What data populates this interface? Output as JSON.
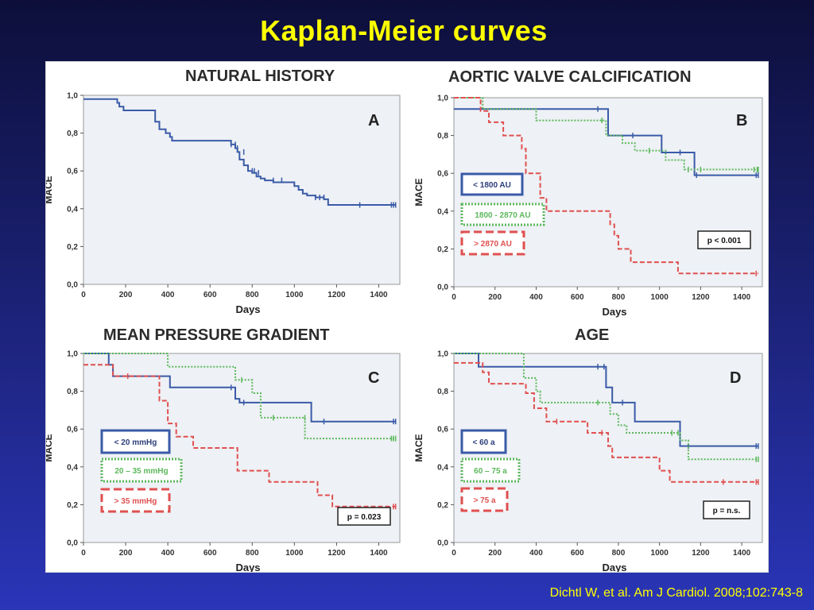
{
  "slide": {
    "title": "Kaplan-Meier curves",
    "citation": "Dichtl W, et al. Am J Cardiol. 2008;102:743-8"
  },
  "colors": {
    "background_top": "#0d0f3a",
    "background_bottom": "#2a35b8",
    "title": "#ffff00",
    "plot_bg": "#eef1f5",
    "blue_series": "#3a5ba8",
    "green_series": "#5cb85c",
    "red_series": "#e05050"
  },
  "chart_data": [
    {
      "id": "A",
      "type": "line",
      "step": true,
      "title": "NATURAL HISTORY",
      "panel_letter": "A",
      "xlabel": "Days",
      "ylabel": "MACE",
      "xlim": [
        0,
        1500
      ],
      "ylim": [
        0,
        1.0
      ],
      "xticks": [
        "0",
        "200",
        "400",
        "600",
        "800",
        "1000",
        "1200",
        "1400"
      ],
      "yticks": [
        "0,0",
        "0,2",
        "0,4",
        "0,6",
        "0,8",
        "1,0"
      ],
      "series": [
        {
          "color": "#3a5ba8",
          "style": "solid",
          "x": [
            0,
            140,
            160,
            170,
            190,
            320,
            340,
            360,
            390,
            410,
            420,
            560,
            700,
            720,
            730,
            740,
            760,
            780,
            800,
            820,
            840,
            860,
            900,
            1000,
            1020,
            1040,
            1060,
            1100,
            1140,
            1160,
            1480
          ],
          "y": [
            0.98,
            0.98,
            0.96,
            0.94,
            0.92,
            0.92,
            0.86,
            0.82,
            0.8,
            0.78,
            0.76,
            0.76,
            0.74,
            0.72,
            0.7,
            0.66,
            0.63,
            0.6,
            0.59,
            0.57,
            0.56,
            0.55,
            0.54,
            0.52,
            0.5,
            0.48,
            0.47,
            0.46,
            0.45,
            0.42,
            0.42
          ],
          "censored": [
            [
              700,
              0.74
            ],
            [
              720,
              0.74
            ],
            [
              730,
              0.72
            ],
            [
              760,
              0.7
            ],
            [
              800,
              0.6
            ],
            [
              810,
              0.6
            ],
            [
              830,
              0.59
            ],
            [
              900,
              0.55
            ],
            [
              940,
              0.55
            ],
            [
              1100,
              0.46
            ],
            [
              1120,
              0.46
            ],
            [
              1140,
              0.46
            ],
            [
              1310,
              0.42
            ],
            [
              1460,
              0.42
            ],
            [
              1470,
              0.42
            ],
            [
              1480,
              0.42
            ]
          ]
        }
      ]
    },
    {
      "id": "B",
      "type": "line",
      "step": true,
      "title": "AORTIC VALVE CALCIFICATION",
      "panel_letter": "B",
      "xlabel": "Days",
      "ylabel": "MACE",
      "xlim": [
        0,
        1500
      ],
      "ylim": [
        0,
        1.0
      ],
      "xticks": [
        "0",
        "200",
        "400",
        "600",
        "800",
        "1000",
        "1200",
        "1400"
      ],
      "yticks": [
        "0,0",
        "0,2",
        "0,4",
        "0,6",
        "0,8",
        "1,0"
      ],
      "annotation": "p < 0.001",
      "series": [
        {
          "name": "< 1800 AU",
          "color": "#3a5ba8",
          "style": "solid",
          "x": [
            0,
            730,
            750,
            1010,
            1170,
            1480
          ],
          "y": [
            0.94,
            0.94,
            0.8,
            0.71,
            0.59,
            0.59
          ],
          "censored": [
            [
              700,
              0.94
            ],
            [
              870,
              0.8
            ],
            [
              1100,
              0.71
            ],
            [
              1180,
              0.59
            ],
            [
              1470,
              0.59
            ],
            [
              1480,
              0.59
            ]
          ]
        },
        {
          "name": "1800 - 2870 AU",
          "color": "#5cb85c",
          "style": "dotted",
          "x": [
            0,
            140,
            400,
            740,
            820,
            880,
            1030,
            1120,
            1480
          ],
          "y": [
            1.0,
            0.94,
            0.88,
            0.8,
            0.76,
            0.72,
            0.67,
            0.62,
            0.62
          ],
          "censored": [
            [
              720,
              0.88
            ],
            [
              950,
              0.72
            ],
            [
              1140,
              0.62
            ],
            [
              1200,
              0.62
            ],
            [
              1460,
              0.62
            ],
            [
              1475,
              0.62
            ],
            [
              1480,
              0.62
            ]
          ]
        },
        {
          "name": "> 2870 AU",
          "color": "#e05050",
          "style": "dashed",
          "x": [
            0,
            130,
            170,
            240,
            330,
            350,
            420,
            450,
            540,
            760,
            780,
            800,
            860,
            910,
            1090,
            1480
          ],
          "y": [
            1.0,
            0.93,
            0.87,
            0.8,
            0.73,
            0.6,
            0.47,
            0.4,
            0.4,
            0.33,
            0.27,
            0.2,
            0.13,
            0.13,
            0.07,
            0.07
          ],
          "censored": [
            [
              1470,
              0.07
            ]
          ]
        }
      ]
    },
    {
      "id": "C",
      "type": "line",
      "step": true,
      "title": "MEAN PRESSURE GRADIENT",
      "panel_letter": "C",
      "xlabel": "Days",
      "ylabel": "MACE",
      "xlim": [
        0,
        1500
      ],
      "ylim": [
        0,
        1.0
      ],
      "xticks": [
        "0",
        "200",
        "400",
        "600",
        "800",
        "1000",
        "1200",
        "1400"
      ],
      "yticks": [
        "0,0",
        "0,2",
        "0,4",
        "0,6",
        "0,8",
        "1,0"
      ],
      "annotation": "p = 0.023",
      "series": [
        {
          "name": "< 20 mmHg",
          "color": "#3a5ba8",
          "style": "solid",
          "x": [
            0,
            120,
            140,
            410,
            720,
            740,
            1080,
            1480
          ],
          "y": [
            1.0,
            0.94,
            0.88,
            0.82,
            0.76,
            0.74,
            0.64,
            0.64
          ],
          "censored": [
            [
              700,
              0.82
            ],
            [
              760,
              0.74
            ],
            [
              1140,
              0.64
            ],
            [
              1470,
              0.64
            ],
            [
              1480,
              0.64
            ]
          ]
        },
        {
          "name": "20 – 35 mmHg",
          "color": "#5cb85c",
          "style": "dotted",
          "x": [
            0,
            400,
            720,
            800,
            840,
            1000,
            1050,
            1480
          ],
          "y": [
            1.0,
            0.93,
            0.86,
            0.79,
            0.66,
            0.66,
            0.55,
            0.55
          ],
          "censored": [
            [
              750,
              0.86
            ],
            [
              900,
              0.66
            ],
            [
              1050,
              0.66
            ],
            [
              1460,
              0.55
            ],
            [
              1470,
              0.55
            ],
            [
              1480,
              0.55
            ]
          ]
        },
        {
          "name": "> 35 mmHg",
          "color": "#e05050",
          "style": "dashed",
          "x": [
            0,
            110,
            140,
            360,
            400,
            440,
            520,
            730,
            770,
            880,
            1000,
            1110,
            1180,
            1480
          ],
          "y": [
            0.94,
            0.94,
            0.88,
            0.75,
            0.63,
            0.56,
            0.5,
            0.38,
            0.38,
            0.32,
            0.32,
            0.25,
            0.19,
            0.19
          ],
          "censored": [
            [
              210,
              0.88
            ],
            [
              1470,
              0.19
            ],
            [
              1480,
              0.19
            ]
          ]
        }
      ]
    },
    {
      "id": "D",
      "type": "line",
      "step": true,
      "title": "AGE",
      "panel_letter": "D",
      "xlabel": "Days",
      "ylabel": "MACE",
      "xlim": [
        0,
        1500
      ],
      "ylim": [
        0,
        1.0
      ],
      "xticks": [
        "0",
        "200",
        "400",
        "600",
        "800",
        "1000",
        "1200",
        "1400"
      ],
      "yticks": [
        "0,0",
        "0,2",
        "0,4",
        "0,6",
        "0,8",
        "1,0"
      ],
      "annotation": "p = n.s.",
      "series": [
        {
          "name": "< 60 a",
          "color": "#3a5ba8",
          "style": "solid",
          "x": [
            0,
            120,
            740,
            770,
            880,
            1100,
            1480
          ],
          "y": [
            1.0,
            0.93,
            0.82,
            0.74,
            0.64,
            0.51,
            0.51
          ],
          "censored": [
            [
              700,
              0.93
            ],
            [
              730,
              0.93
            ],
            [
              820,
              0.74
            ],
            [
              1140,
              0.51
            ],
            [
              1470,
              0.51
            ],
            [
              1480,
              0.51
            ]
          ]
        },
        {
          "name": "60 – 75 a",
          "color": "#5cb85c",
          "style": "dotted",
          "x": [
            0,
            340,
            400,
            420,
            760,
            800,
            840,
            1100,
            1140,
            1480
          ],
          "y": [
            1.0,
            0.87,
            0.8,
            0.74,
            0.68,
            0.62,
            0.58,
            0.54,
            0.44,
            0.44
          ],
          "censored": [
            [
              700,
              0.74
            ],
            [
              1060,
              0.58
            ],
            [
              1090,
              0.58
            ],
            [
              1470,
              0.44
            ],
            [
              1480,
              0.44
            ]
          ]
        },
        {
          "name": "> 75 a",
          "color": "#e05050",
          "style": "dashed",
          "x": [
            0,
            140,
            170,
            350,
            390,
            450,
            650,
            750,
            770,
            1000,
            1050,
            1480
          ],
          "y": [
            0.95,
            0.9,
            0.84,
            0.79,
            0.71,
            0.64,
            0.58,
            0.51,
            0.45,
            0.38,
            0.32,
            0.32
          ],
          "censored": [
            [
              500,
              0.64
            ],
            [
              720,
              0.58
            ],
            [
              1310,
              0.32
            ],
            [
              1470,
              0.32
            ],
            [
              1480,
              0.32
            ]
          ]
        }
      ]
    }
  ]
}
